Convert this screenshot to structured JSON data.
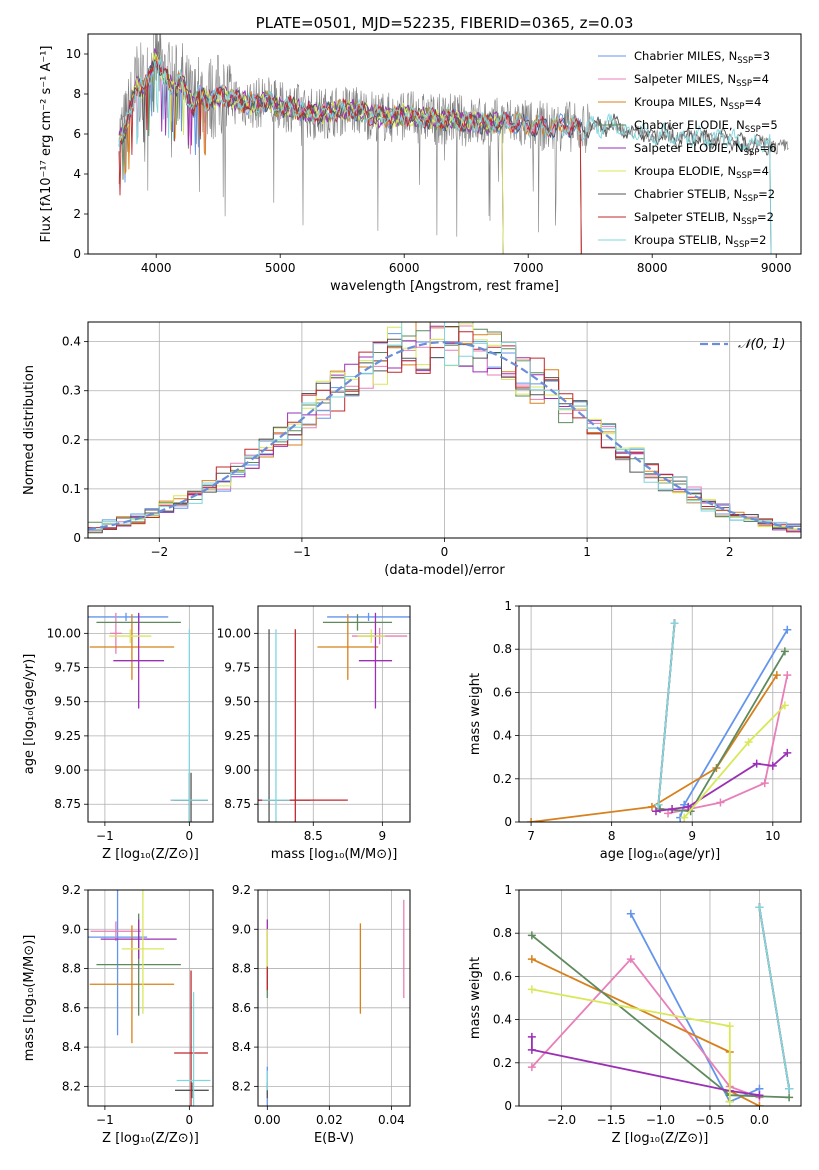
{
  "chart_data": [
    {
      "id": "spectrum",
      "type": "line",
      "title": "PLATE=0501, MJD=52235, FIBERID=0365, z=0.03",
      "xlabel": "wavelength [Angstrom, rest frame]",
      "ylabel": "Flux [fλ10⁻¹⁷ erg cm⁻² s⁻¹ A⁻¹]",
      "xlim": [
        3450,
        9200
      ],
      "ylim": [
        0,
        11
      ],
      "xticks": [
        4000,
        5000,
        6000,
        7000,
        8000,
        9000
      ],
      "yticks": [
        0,
        2,
        4,
        6,
        8,
        10
      ],
      "grid": false,
      "legend_position": "top-right",
      "data": {
        "name": "",
        "color": "#808080",
        "x": [
          3700,
          3750,
          3800,
          3850,
          3900,
          3950,
          4000,
          4050,
          4100,
          4150,
          4200,
          4250,
          4300,
          4350,
          4400,
          4500,
          4600,
          4700,
          4800,
          4900,
          5000,
          5100,
          5200,
          5300,
          5400,
          5500,
          5600,
          5700,
          5800,
          5900,
          6000,
          6100,
          6200,
          6300,
          6400,
          6500,
          6600,
          6700,
          6800,
          6900,
          7000,
          7100,
          7200,
          7300,
          7400,
          7500,
          7600,
          7700,
          7800,
          7900,
          8000,
          8100,
          8200,
          8300,
          8400,
          8500,
          8600,
          8700,
          8800,
          8900,
          9000,
          9100
        ],
        "y": [
          5.7,
          6.2,
          7.4,
          8.6,
          8.2,
          8.9,
          9.9,
          9.0,
          8.6,
          8.3,
          8.7,
          7.9,
          7.4,
          8.0,
          7.7,
          7.9,
          7.8,
          7.6,
          7.5,
          7.7,
          7.3,
          7.4,
          7.1,
          7.0,
          7.1,
          7.2,
          7.2,
          7.0,
          6.9,
          6.8,
          7.0,
          6.8,
          6.8,
          6.7,
          6.8,
          6.6,
          6.6,
          6.5,
          6.6,
          6.6,
          6.4,
          6.4,
          6.3,
          6.5,
          6.2,
          6.4,
          6.3,
          6.5,
          6.0,
          6.2,
          5.8,
          6.0,
          5.8,
          5.9,
          5.8,
          5.7,
          5.9,
          5.6,
          5.4,
          5.6,
          5.3,
          5.5
        ]
      },
      "series": [
        {
          "name": "Chabrier MILES, N_SSP=3",
          "legend": [
            "Chabrier MILES, N",
            "SSP",
            "=3"
          ],
          "color": "#6495ed",
          "x_end": 7420
        },
        {
          "name": "Salpeter MILES, N_SSP=4",
          "legend": [
            "Salpeter MILES, N",
            "SSP",
            "=4"
          ],
          "color": "#e87fb8",
          "x_end": 7420
        },
        {
          "name": "Kroupa MILES, N_SSP=4",
          "legend": [
            "Kroupa MILES, N",
            "SSP",
            "=4"
          ],
          "color": "#d7801c",
          "x_end": 7420
        },
        {
          "name": "Chabrier ELODIE, N_SSP=5",
          "legend": [
            "Chabrier ELODIE, N",
            "SSP",
            "=5"
          ],
          "color": "#5e8a5e",
          "x_end": 6790
        },
        {
          "name": "Salpeter ELODIE, N_SSP=6",
          "legend": [
            "Salpeter ELODIE, N",
            "SSP",
            "=6"
          ],
          "color": "#9b30b5",
          "x_end": 6790
        },
        {
          "name": "Kroupa ELODIE, N_SSP=4",
          "legend": [
            "Kroupa ELODIE, N",
            "SSP",
            "=4"
          ],
          "color": "#d8e85a",
          "x_end": 6790
        },
        {
          "name": "Chabrier STELIB, N_SSP=2",
          "legend": [
            "Chabrier STELIB, N",
            "SSP",
            "=2"
          ],
          "color": "#555555",
          "x_end": 8950
        },
        {
          "name": "Salpeter STELIB, N_SSP=2",
          "legend": [
            "Salpeter STELIB, N",
            "SSP",
            "=2"
          ],
          "color": "#c0282d",
          "x_end": 7420
        },
        {
          "name": "Kroupa STELIB, N_SSP=2",
          "legend": [
            "Kroupa STELIB, N",
            "SSP",
            "=2"
          ],
          "color": "#7fd6dd",
          "x_end": 8950
        }
      ]
    },
    {
      "id": "residuals",
      "type": "step",
      "xlabel": "(data-model)/error",
      "ylabel": "Normed distribution",
      "xlim": [
        -2.5,
        2.5
      ],
      "ylim": [
        0,
        0.44
      ],
      "xticks": [
        -2,
        -1,
        0,
        1,
        2
      ],
      "yticks": [
        0.0,
        0.1,
        0.2,
        0.3,
        0.4
      ],
      "bin_width": 0.1,
      "grid": true,
      "legend_position": "top-right",
      "reference": {
        "name": "𝒩(0, 1)",
        "color": "#6a8ed8",
        "style": "dashed",
        "mean": 0,
        "sigma": 1
      },
      "series_colors": [
        "#6495ed",
        "#e87fb8",
        "#d7801c",
        "#5e8a5e",
        "#9b30b5",
        "#d8e85a",
        "#555555",
        "#c0282d",
        "#7fd6dd"
      ]
    },
    {
      "id": "age-vs-Z",
      "type": "errorbar",
      "xlabel": "Z [log₁₀(Z/Z⊙)]",
      "ylabel": "age  [log₁₀(age/yr)]",
      "xlim": [
        -1.2,
        0.28
      ],
      "ylim": [
        8.62,
        10.2
      ],
      "xticks": [
        -1,
        0
      ],
      "yticks": [
        8.75,
        9.0,
        9.25,
        9.5,
        9.75,
        10.0
      ],
      "yticklabels": [
        "8.75",
        "9.00",
        "9.25",
        "9.50",
        "9.75",
        "10.00"
      ],
      "grid": true,
      "points": [
        {
          "color": "#6495ed",
          "x": -0.75,
          "y": 10.12,
          "xerr": 0.5,
          "yerr": 0.03
        },
        {
          "color": "#e87fb8",
          "x": -0.87,
          "y": 10.0,
          "xerr": 0.07,
          "yerr": 0.15
        },
        {
          "color": "#d7801c",
          "x": -0.68,
          "y": 9.9,
          "xerr": 0.5,
          "yerr": 0.24
        },
        {
          "color": "#5e8a5e",
          "x": -0.6,
          "y": 10.08,
          "xerr": 0.5,
          "yerr": 0.06
        },
        {
          "color": "#9b30b5",
          "x": -0.6,
          "y": 9.8,
          "xerr": 0.3,
          "yerr": 0.35
        },
        {
          "color": "#d8e85a",
          "x": -0.7,
          "y": 9.98,
          "xerr": 0.25,
          "yerr": 0.05
        },
        {
          "color": "#555555",
          "x": 0.02,
          "y": 8.78,
          "xerr": 0.2,
          "yerr": 0.2
        },
        {
          "color": "#c0282d",
          "x": 0.0,
          "y": 8.78,
          "xerr": 0.22,
          "yerr": 0.2
        },
        {
          "color": "#7fd6dd",
          "x": 0.0,
          "y": 8.78,
          "xerr": 0.22,
          "yerr": 1.25
        }
      ]
    },
    {
      "id": "age-vs-mass",
      "type": "errorbar",
      "xlabel": "mass [log₁₀(M/M⊙)]",
      "ylabel": "",
      "xlim": [
        8.1,
        9.2
      ],
      "ylim": [
        8.62,
        10.2
      ],
      "xticks": [
        8.5,
        9.0
      ],
      "yticks": [
        8.75,
        9.0,
        9.25,
        9.5,
        9.75,
        10.0
      ],
      "yticklabels": [
        "8.75",
        "9.00",
        "9.25",
        "9.50",
        "9.75",
        "10.00"
      ],
      "grid": true,
      "points": [
        {
          "color": "#6495ed",
          "x": 8.9,
          "y": 10.12,
          "xerr": 0.3,
          "yerr": 0.03
        },
        {
          "color": "#e87fb8",
          "x": 8.98,
          "y": 9.98,
          "xerr": 0.2,
          "yerr": 0.06
        },
        {
          "color": "#d7801c",
          "x": 8.75,
          "y": 9.9,
          "xerr": 0.22,
          "yerr": 0.24
        },
        {
          "color": "#5e8a5e",
          "x": 8.82,
          "y": 10.08,
          "xerr": 0.25,
          "yerr": 0.06
        },
        {
          "color": "#9b30b5",
          "x": 8.95,
          "y": 9.8,
          "xerr": 0.12,
          "yerr": 0.35
        },
        {
          "color": "#d8e85a",
          "x": 8.92,
          "y": 9.98,
          "xerr": 0.1,
          "yerr": 0.05
        },
        {
          "color": "#555555",
          "x": 8.18,
          "y": 8.78,
          "xerr": 0.3,
          "yerr": 1.25
        },
        {
          "color": "#c0282d",
          "x": 8.37,
          "y": 8.78,
          "xerr": 0.38,
          "yerr": 1.25
        },
        {
          "color": "#7fd6dd",
          "x": 8.23,
          "y": 8.78,
          "xerr": 0.1,
          "yerr": 1.25
        }
      ]
    },
    {
      "id": "mass-weight-vs-age",
      "type": "line",
      "xlabel": "age  [log₁₀(age/yr)]",
      "ylabel": "mass weight",
      "xlim": [
        6.85,
        10.35
      ],
      "ylim": [
        0,
        1.0
      ],
      "xticks": [
        7,
        8,
        9,
        10
      ],
      "yticks": [
        0.0,
        0.2,
        0.4,
        0.6,
        0.8,
        1.0
      ],
      "grid": true,
      "series": [
        {
          "color": "#6495ed",
          "x": [
            8.85,
            8.9,
            10.18
          ],
          "y": [
            0.02,
            0.08,
            0.89
          ]
        },
        {
          "color": "#e87fb8",
          "x": [
            8.7,
            9.35,
            9.9,
            10.18
          ],
          "y": [
            0.04,
            0.09,
            0.18,
            0.68
          ]
        },
        {
          "color": "#d7801c",
          "x": [
            7.0,
            8.5,
            9.3,
            10.05
          ],
          "y": [
            0.0,
            0.07,
            0.25,
            0.68
          ]
        },
        {
          "color": "#5e8a5e",
          "x": [
            8.6,
            8.98,
            10.15
          ],
          "y": [
            0.06,
            0.05,
            0.79
          ]
        },
        {
          "color": "#9b30b5",
          "x": [
            8.55,
            8.75,
            8.95,
            9.8,
            10.0,
            10.18
          ],
          "y": [
            0.05,
            0.06,
            0.07,
            0.27,
            0.26,
            0.32
          ]
        },
        {
          "color": "#d8e85a",
          "x": [
            8.9,
            9.7,
            10.15
          ],
          "y": [
            0.02,
            0.37,
            0.54
          ]
        },
        {
          "color": "#555555",
          "x": [
            8.58,
            8.78
          ],
          "y": [
            0.08,
            0.92
          ]
        },
        {
          "color": "#c0282d",
          "x": [
            8.58,
            8.78
          ],
          "y": [
            0.08,
            0.92
          ]
        },
        {
          "color": "#7fd6dd",
          "x": [
            8.58,
            8.78
          ],
          "y": [
            0.08,
            0.92
          ]
        }
      ]
    },
    {
      "id": "mass-vs-Z",
      "type": "errorbar",
      "xlabel": "Z [log₁₀(Z/Z⊙)]",
      "ylabel": "mass [log₁₀(M/M⊙)]",
      "xlim": [
        -1.2,
        0.28
      ],
      "ylim": [
        8.1,
        9.2
      ],
      "xticks": [
        -1,
        0
      ],
      "yticks": [
        8.2,
        8.4,
        8.6,
        8.8,
        9.0,
        9.2
      ],
      "yticklabels": [
        "8.2",
        "8.4",
        "8.6",
        "8.8",
        "9.0",
        "9.2"
      ],
      "grid": true,
      "points": [
        {
          "color": "#6495ed",
          "x": -0.85,
          "y": 8.96,
          "xerr": 0.35,
          "yerr": 0.5
        },
        {
          "color": "#e87fb8",
          "x": -0.87,
          "y": 8.99,
          "xerr": 0.3,
          "yerr": 0.05
        },
        {
          "color": "#d7801c",
          "x": -0.68,
          "y": 8.72,
          "xerr": 0.5,
          "yerr": 0.3
        },
        {
          "color": "#5e8a5e",
          "x": -0.6,
          "y": 8.82,
          "xerr": 0.5,
          "yerr": 0.26
        },
        {
          "color": "#9b30b5",
          "x": -0.6,
          "y": 8.95,
          "xerr": 0.45,
          "yerr": 0.1
        },
        {
          "color": "#d8e85a",
          "x": -0.55,
          "y": 8.9,
          "xerr": 0.25,
          "yerr": 0.33
        },
        {
          "color": "#555555",
          "x": 0.03,
          "y": 8.18,
          "xerr": 0.2,
          "yerr": 0.04
        },
        {
          "color": "#c0282d",
          "x": 0.02,
          "y": 8.37,
          "xerr": 0.2,
          "yerr": 0.42
        },
        {
          "color": "#7fd6dd",
          "x": 0.05,
          "y": 8.23,
          "xerr": 0.2,
          "yerr": 0.45
        }
      ]
    },
    {
      "id": "mass-vs-ebv",
      "type": "errorbar",
      "xlabel": "E(B-V)",
      "ylabel": "",
      "xlim": [
        -0.003,
        0.046
      ],
      "ylim": [
        8.1,
        9.2
      ],
      "xticks": [
        0.0,
        0.02,
        0.04
      ],
      "yticks": [
        8.2,
        8.4,
        8.6,
        8.8,
        9.0,
        9.2
      ],
      "xticklabels": [
        "0.00",
        "0.02",
        "0.04"
      ],
      "yticklabels": [
        "8.2",
        "8.4",
        "8.6",
        "8.8",
        "9.0",
        "9.2"
      ],
      "grid": true,
      "points": [
        {
          "color": "#6495ed",
          "x": 0.0,
          "y": 8.2,
          "xerr": 0,
          "yerr": 0.1
        },
        {
          "color": "#e87fb8",
          "x": 0.044,
          "y": 8.9,
          "xerr": 0,
          "yerr": 0.25
        },
        {
          "color": "#d7801c",
          "x": 0.03,
          "y": 8.8,
          "xerr": 0,
          "yerr": 0.23
        },
        {
          "color": "#5e8a5e",
          "x": 0.0,
          "y": 8.75,
          "xerr": 0,
          "yerr": 0.1
        },
        {
          "color": "#9b30b5",
          "x": 0.0,
          "y": 8.95,
          "xerr": 0,
          "yerr": 0.1
        },
        {
          "color": "#d8e85a",
          "x": 0.0,
          "y": 8.9,
          "xerr": 0,
          "yerr": 0.1
        },
        {
          "color": "#555555",
          "x": 0.0,
          "y": 8.18,
          "xerr": 0,
          "yerr": 0.04
        },
        {
          "color": "#c0282d",
          "x": 0.0,
          "y": 8.75,
          "xerr": 0,
          "yerr": 0.06
        },
        {
          "color": "#7fd6dd",
          "x": 0.0,
          "y": 8.23,
          "xerr": 0,
          "yerr": 0.05
        }
      ]
    },
    {
      "id": "mass-weight-vs-Z",
      "type": "line",
      "xlabel": "Z [log₁₀(Z/Z⊙)]",
      "ylabel": "mass weight",
      "xlim": [
        -2.43,
        0.42
      ],
      "ylim": [
        0,
        1.0
      ],
      "xticks": [
        -2.0,
        -1.5,
        -1.0,
        -0.5,
        0.0
      ],
      "yticks": [
        0.0,
        0.2,
        0.4,
        0.6,
        0.8,
        1.0
      ],
      "xticklabels": [
        "−2.0",
        "−1.5",
        "−1.0",
        "−0.5",
        "0.0"
      ],
      "grid": true,
      "series": [
        {
          "color": "#6495ed",
          "x": [
            -1.3,
            -0.3,
            0.0
          ],
          "y": [
            0.89,
            0.02,
            0.08
          ]
        },
        {
          "color": "#e87fb8",
          "x": [
            -2.3,
            -1.3,
            -0.3,
            0.0
          ],
          "y": [
            0.18,
            0.68,
            0.09,
            0.04
          ]
        },
        {
          "color": "#d7801c",
          "x": [
            -2.3,
            -0.3,
            -0.3,
            0.0
          ],
          "y": [
            0.68,
            0.25,
            0.07,
            0.0
          ]
        },
        {
          "color": "#5e8a5e",
          "x": [
            -2.3,
            -0.3,
            0.3
          ],
          "y": [
            0.79,
            0.05,
            0.04
          ]
        },
        {
          "color": "#9b30b5",
          "x": [
            -2.3,
            -2.3,
            -0.3,
            0.0
          ],
          "y": [
            0.32,
            0.26,
            0.07,
            0.05
          ]
        },
        {
          "color": "#d8e85a",
          "x": [
            -2.3,
            -0.3,
            -0.3
          ],
          "y": [
            0.54,
            0.37,
            0.02
          ]
        },
        {
          "color": "#555555",
          "x": [
            0.0,
            0.3
          ],
          "y": [
            0.92,
            0.08
          ]
        },
        {
          "color": "#c0282d",
          "x": [
            0.0,
            0.3
          ],
          "y": [
            0.92,
            0.08
          ]
        },
        {
          "color": "#7fd6dd",
          "x": [
            0.0,
            0.3
          ],
          "y": [
            0.92,
            0.08
          ]
        }
      ]
    }
  ]
}
